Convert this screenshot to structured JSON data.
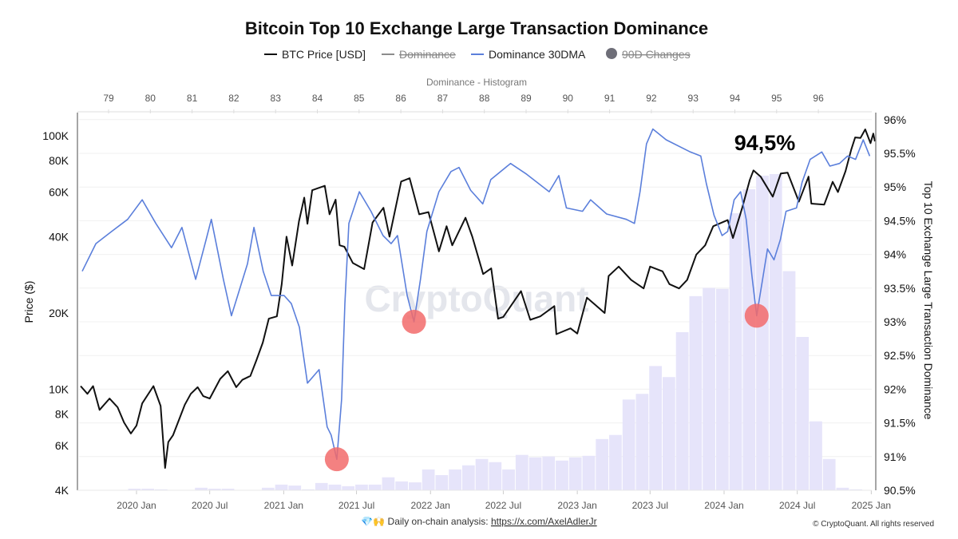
{
  "chart_data": {
    "type": "line",
    "title": "Bitcoin Top 10 Exchange Large Transaction Dominance",
    "legend": [
      {
        "name": "BTC Price [USD]",
        "color": "#111111",
        "marker": "line",
        "enabled": true
      },
      {
        "name": "Dominance",
        "color": "#8c8c8c",
        "marker": "line",
        "enabled": false
      },
      {
        "name": "Dominance 30DMA",
        "color": "#5b7fdb",
        "marker": "line",
        "enabled": true
      },
      {
        "name": "90D Changes",
        "color": "#6e6e78",
        "marker": "circle",
        "enabled": false
      }
    ],
    "legend_position": "top",
    "watermark": "CryptoQuant",
    "annotation": "94,5%",
    "x_axis": {
      "type": "date",
      "range": [
        "2019-08-10",
        "2025-01-12"
      ],
      "tick_labels": [
        "2020 Jan",
        "2020 Jul",
        "2021 Jan",
        "2021 Jul",
        "2022 Jan",
        "2022 Jul",
        "2023 Jan",
        "2023 Jul",
        "2024 Jan",
        "2024 Jul",
        "2025 Jan"
      ],
      "tick_dates": [
        "2020-01-01",
        "2020-07-01",
        "2021-01-01",
        "2021-07-01",
        "2022-01-01",
        "2022-07-01",
        "2023-01-01",
        "2023-07-01",
        "2024-01-01",
        "2024-07-01",
        "2025-01-01"
      ]
    },
    "y_left": {
      "label": "Price ($)",
      "scale": "log",
      "range": [
        4000,
        134000
      ],
      "tick_labels": [
        "100K",
        "80K",
        "60K",
        "40K",
        "20K",
        "10K",
        "8K",
        "6K",
        "4K"
      ],
      "tick_values": [
        100000,
        80000,
        60000,
        40000,
        20000,
        10000,
        8000,
        6000,
        4000
      ]
    },
    "y_right": {
      "label": "Top 10 Exchange Large Transaction Dominance",
      "scale": "linear",
      "range": [
        90.5,
        96.24
      ],
      "tick_labels": [
        "96%",
        "95.5%",
        "95%",
        "94.5%",
        "94%",
        "93.5%",
        "93%",
        "92.5%",
        "92%",
        "91.5%",
        "91%",
        "90.5%"
      ],
      "tick_values": [
        96,
        95.5,
        95,
        94.5,
        94,
        93.5,
        93,
        92.5,
        92,
        91.5,
        91,
        90.5
      ]
    },
    "x_top": {
      "label": "Dominance - Histogram",
      "range": [
        78.3,
        98.1
      ],
      "tick_labels": [
        "79",
        "80",
        "81",
        "82",
        "83",
        "84",
        "85",
        "86",
        "87",
        "88",
        "89",
        "90",
        "91",
        "92",
        "93",
        "94",
        "95",
        "96"
      ],
      "tick_values": [
        79,
        80,
        81,
        82,
        83,
        84,
        85,
        86,
        87,
        88,
        89,
        90,
        91,
        92,
        93,
        94,
        95,
        96
      ]
    },
    "grid": true,
    "series": [
      {
        "name": "BTC Price [USD]",
        "axis": "left",
        "color": "#111111",
        "points": [
          [
            "2019-08-15",
            10300
          ],
          [
            "2019-09-01",
            9600
          ],
          [
            "2019-09-15",
            10300
          ],
          [
            "2019-10-01",
            8300
          ],
          [
            "2019-10-26",
            9200
          ],
          [
            "2019-11-15",
            8500
          ],
          [
            "2019-12-01",
            7400
          ],
          [
            "2019-12-18",
            6700
          ],
          [
            "2020-01-01",
            7200
          ],
          [
            "2020-01-15",
            8800
          ],
          [
            "2020-02-12",
            10300
          ],
          [
            "2020-03-01",
            8600
          ],
          [
            "2020-03-12",
            4900
          ],
          [
            "2020-03-20",
            6200
          ],
          [
            "2020-04-01",
            6600
          ],
          [
            "2020-04-30",
            8700
          ],
          [
            "2020-05-15",
            9600
          ],
          [
            "2020-06-01",
            10200
          ],
          [
            "2020-06-15",
            9400
          ],
          [
            "2020-07-01",
            9200
          ],
          [
            "2020-07-27",
            11000
          ],
          [
            "2020-08-15",
            11800
          ],
          [
            "2020-09-05",
            10200
          ],
          [
            "2020-09-20",
            10900
          ],
          [
            "2020-10-10",
            11300
          ],
          [
            "2020-10-25",
            13000
          ],
          [
            "2020-11-10",
            15300
          ],
          [
            "2020-11-25",
            19000
          ],
          [
            "2020-12-15",
            19400
          ],
          [
            "2020-12-27",
            26000
          ],
          [
            "2021-01-08",
            40000
          ],
          [
            "2021-01-22",
            30800
          ],
          [
            "2021-02-08",
            46000
          ],
          [
            "2021-02-21",
            57000
          ],
          [
            "2021-03-01",
            45000
          ],
          [
            "2021-03-13",
            61000
          ],
          [
            "2021-04-13",
            63500
          ],
          [
            "2021-04-25",
            49000
          ],
          [
            "2021-05-10",
            56000
          ],
          [
            "2021-05-20",
            37000
          ],
          [
            "2021-06-01",
            36500
          ],
          [
            "2021-06-22",
            31500
          ],
          [
            "2021-07-20",
            29800
          ],
          [
            "2021-08-10",
            45500
          ],
          [
            "2021-09-06",
            52000
          ],
          [
            "2021-09-21",
            40000
          ],
          [
            "2021-10-20",
            66000
          ],
          [
            "2021-11-10",
            68000
          ],
          [
            "2021-12-04",
            49000
          ],
          [
            "2021-12-27",
            50000
          ],
          [
            "2022-01-22",
            35000
          ],
          [
            "2022-02-10",
            44000
          ],
          [
            "2022-02-24",
            37000
          ],
          [
            "2022-03-29",
            47500
          ],
          [
            "2022-04-15",
            40000
          ],
          [
            "2022-05-12",
            28500
          ],
          [
            "2022-06-01",
            30000
          ],
          [
            "2022-06-18",
            19000
          ],
          [
            "2022-07-01",
            19300
          ],
          [
            "2022-08-14",
            24400
          ],
          [
            "2022-09-06",
            18800
          ],
          [
            "2022-10-01",
            19400
          ],
          [
            "2022-11-05",
            21300
          ],
          [
            "2022-11-10",
            16500
          ],
          [
            "2022-12-15",
            17400
          ],
          [
            "2023-01-01",
            16600
          ],
          [
            "2023-01-25",
            23000
          ],
          [
            "2023-03-10",
            20000
          ],
          [
            "2023-03-20",
            28000
          ],
          [
            "2023-04-14",
            30500
          ],
          [
            "2023-05-15",
            27000
          ],
          [
            "2023-06-15",
            25000
          ],
          [
            "2023-07-01",
            30500
          ],
          [
            "2023-08-01",
            29200
          ],
          [
            "2023-08-18",
            26000
          ],
          [
            "2023-09-11",
            25000
          ],
          [
            "2023-10-01",
            27000
          ],
          [
            "2023-10-24",
            34000
          ],
          [
            "2023-11-15",
            37000
          ],
          [
            "2023-12-05",
            44000
          ],
          [
            "2024-01-10",
            46500
          ],
          [
            "2024-01-23",
            39500
          ],
          [
            "2024-02-15",
            52000
          ],
          [
            "2024-03-05",
            67000
          ],
          [
            "2024-03-14",
            73000
          ],
          [
            "2024-04-01",
            69000
          ],
          [
            "2024-05-01",
            57500
          ],
          [
            "2024-05-21",
            71000
          ],
          [
            "2024-06-07",
            71500
          ],
          [
            "2024-07-05",
            55000
          ],
          [
            "2024-07-29",
            69000
          ],
          [
            "2024-08-05",
            54000
          ],
          [
            "2024-09-06",
            53500
          ],
          [
            "2024-09-27",
            65800
          ],
          [
            "2024-10-10",
            60000
          ],
          [
            "2024-10-29",
            72500
          ],
          [
            "2024-11-12",
            88000
          ],
          [
            "2024-11-22",
            98500
          ],
          [
            "2024-12-05",
            98000
          ],
          [
            "2024-12-17",
            106000
          ],
          [
            "2024-12-30",
            93500
          ],
          [
            "2025-01-06",
            102000
          ],
          [
            "2025-01-10",
            95000
          ]
        ]
      },
      {
        "name": "Dominance 30DMA",
        "axis": "right",
        "color": "#5b7fdb",
        "points": [
          [
            "2019-08-19",
            93.75
          ],
          [
            "2019-09-22",
            94.16
          ],
          [
            "2019-10-31",
            94.34
          ],
          [
            "2019-12-10",
            94.52
          ],
          [
            "2020-01-15",
            94.81
          ],
          [
            "2020-02-18",
            94.46
          ],
          [
            "2020-03-28",
            94.1
          ],
          [
            "2020-04-23",
            94.4
          ],
          [
            "2020-05-27",
            93.63
          ],
          [
            "2020-06-22",
            94.22
          ],
          [
            "2020-07-05",
            94.52
          ],
          [
            "2020-08-04",
            93.63
          ],
          [
            "2020-08-24",
            93.09
          ],
          [
            "2020-10-03",
            93.86
          ],
          [
            "2020-10-19",
            94.4
          ],
          [
            "2020-11-11",
            93.75
          ],
          [
            "2020-12-01",
            93.39
          ],
          [
            "2021-01-02",
            93.39
          ],
          [
            "2021-01-20",
            93.27
          ],
          [
            "2021-02-09",
            92.92
          ],
          [
            "2021-03-01",
            92.09
          ],
          [
            "2021-03-30",
            92.29
          ],
          [
            "2021-04-19",
            91.44
          ],
          [
            "2021-04-29",
            91.32
          ],
          [
            "2021-05-13",
            90.96
          ],
          [
            "2021-05-25",
            91.85
          ],
          [
            "2021-06-02",
            93.27
          ],
          [
            "2021-06-12",
            94.46
          ],
          [
            "2021-07-08",
            94.93
          ],
          [
            "2021-08-06",
            94.64
          ],
          [
            "2021-09-05",
            94.28
          ],
          [
            "2021-09-25",
            94.16
          ],
          [
            "2021-10-11",
            94.28
          ],
          [
            "2021-11-04",
            93.39
          ],
          [
            "2021-11-21",
            93.0
          ],
          [
            "2021-12-07",
            93.63
          ],
          [
            "2021-12-23",
            94.34
          ],
          [
            "2022-01-22",
            94.93
          ],
          [
            "2022-02-21",
            95.23
          ],
          [
            "2022-03-13",
            95.29
          ],
          [
            "2022-04-11",
            94.95
          ],
          [
            "2022-05-11",
            94.75
          ],
          [
            "2022-05-31",
            95.11
          ],
          [
            "2022-07-19",
            95.35
          ],
          [
            "2022-08-28",
            95.19
          ],
          [
            "2022-10-23",
            94.93
          ],
          [
            "2022-11-16",
            95.17
          ],
          [
            "2022-12-05",
            94.69
          ],
          [
            "2023-01-14",
            94.64
          ],
          [
            "2023-02-03",
            94.81
          ],
          [
            "2023-03-15",
            94.6
          ],
          [
            "2023-05-03",
            94.52
          ],
          [
            "2023-05-23",
            94.46
          ],
          [
            "2023-06-06",
            94.93
          ],
          [
            "2023-06-22",
            95.64
          ],
          [
            "2023-07-08",
            95.86
          ],
          [
            "2023-08-10",
            95.7
          ],
          [
            "2023-10-09",
            95.52
          ],
          [
            "2023-11-04",
            95.46
          ],
          [
            "2023-11-18",
            95.05
          ],
          [
            "2023-12-07",
            94.58
          ],
          [
            "2023-12-27",
            94.28
          ],
          [
            "2024-01-10",
            94.34
          ],
          [
            "2024-01-26",
            94.81
          ],
          [
            "2024-02-11",
            94.93
          ],
          [
            "2024-02-25",
            94.52
          ],
          [
            "2024-03-10",
            93.69
          ],
          [
            "2024-03-22",
            93.09
          ],
          [
            "2024-04-04",
            93.57
          ],
          [
            "2024-04-18",
            94.08
          ],
          [
            "2024-05-04",
            93.92
          ],
          [
            "2024-05-20",
            94.22
          ],
          [
            "2024-06-03",
            94.64
          ],
          [
            "2024-06-29",
            94.69
          ],
          [
            "2024-07-13",
            95.07
          ],
          [
            "2024-08-02",
            95.41
          ],
          [
            "2024-08-31",
            95.52
          ],
          [
            "2024-09-20",
            95.31
          ],
          [
            "2024-10-14",
            95.35
          ],
          [
            "2024-11-03",
            95.46
          ],
          [
            "2024-11-23",
            95.41
          ],
          [
            "2024-12-12",
            95.7
          ],
          [
            "2024-12-28",
            95.46
          ]
        ]
      }
    ],
    "highlighted_lows": [
      {
        "date": "2021-05-13",
        "value": 90.96,
        "color": "#f26b6b"
      },
      {
        "date": "2021-11-21",
        "value": 93.0,
        "color": "#f26b6b"
      },
      {
        "date": "2024-03-22",
        "value": 93.09,
        "color": "#f26b6b"
      }
    ],
    "histogram": {
      "axis": "top",
      "color": "#e6e4fa",
      "bin_start": 78.5,
      "bin_width": 0.32,
      "relative_counts": [
        0.1,
        0.1,
        0.1,
        0.5,
        0.5,
        0.3,
        0.1,
        0.1,
        0.8,
        0.5,
        0.5,
        0.1,
        0.1,
        0.8,
        1.8,
        1.5,
        0.3,
        2.3,
        1.8,
        1.3,
        1.8,
        1.8,
        4.1,
        2.8,
        2.5,
        6.6,
        4.8,
        6.6,
        7.9,
        9.9,
        8.9,
        6.6,
        11.2,
        10.4,
        10.7,
        9.4,
        10.4,
        10.9,
        16.2,
        17.5,
        28.7,
        30.5,
        39.3,
        35.8,
        50,
        61.4,
        64,
        63.7,
        87.6,
        95.2,
        99.5,
        100,
        69.3,
        48.5,
        21.8,
        9.9,
        0.8,
        0.3
      ]
    }
  },
  "footer": {
    "emoji": "💎🙌",
    "text": "Daily on-chain analysis: ",
    "link": "https://x.com/AxelAdlerJr",
    "copyright": "© CryptoQuant. All rights reserved"
  }
}
